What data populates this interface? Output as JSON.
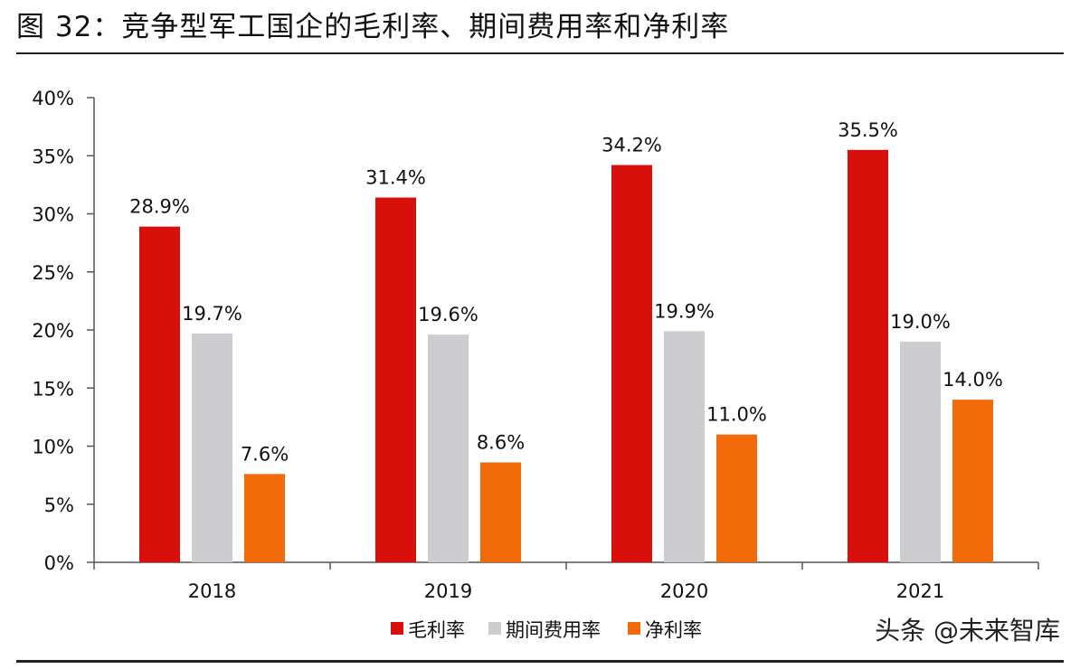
{
  "figure_title": "图 32：竞争型军工国企的毛利率、期间费用率和净利率",
  "watermark": "头条 @未来智库",
  "chart_data": {
    "type": "bar",
    "title": "图 32：竞争型军工国企的毛利率、期间费用率和净利率",
    "xlabel": "",
    "ylabel": "",
    "categories": [
      "2018",
      "2019",
      "2020",
      "2021"
    ],
    "series": [
      {
        "name": "毛利率",
        "values": [
          28.9,
          31.4,
          34.2,
          35.5
        ],
        "color": "#d7100b",
        "labels": [
          "28.9%",
          "31.4%",
          "34.2%",
          "35.5%"
        ]
      },
      {
        "name": "期间费用率",
        "values": [
          19.7,
          19.6,
          19.9,
          19.0
        ],
        "color": "#cdcdcf",
        "labels": [
          "19.7%",
          "19.6%",
          "19.9%",
          "19.0%"
        ]
      },
      {
        "name": "净利率",
        "values": [
          7.6,
          8.6,
          11.0,
          14.0
        ],
        "color": "#f26a0a",
        "labels": [
          "7.6%",
          "8.6%",
          "11.0%",
          "14.0%"
        ]
      }
    ],
    "ylim": [
      0,
      40
    ],
    "yticks": [
      0,
      5,
      10,
      15,
      20,
      25,
      30,
      35,
      40
    ],
    "ytick_labels": [
      "0%",
      "5%",
      "10%",
      "15%",
      "20%",
      "25%",
      "30%",
      "35%",
      "40%"
    ],
    "grid": false,
    "legend_position": "bottom-center"
  }
}
